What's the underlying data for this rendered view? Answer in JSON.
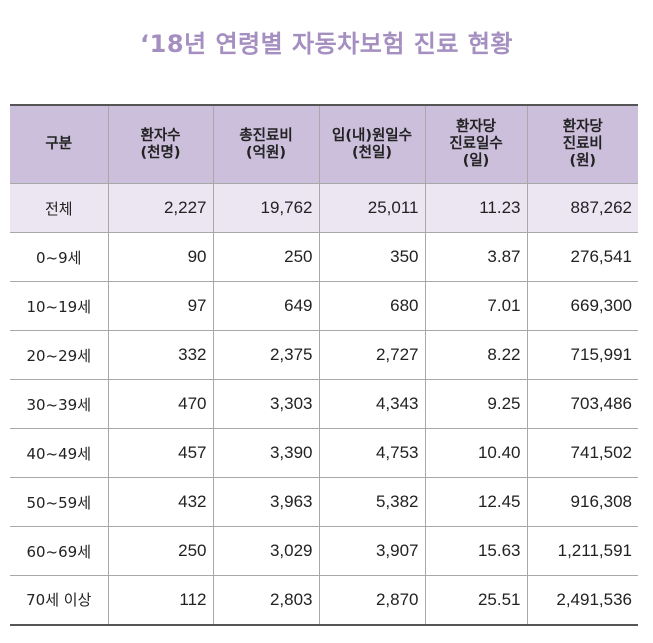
{
  "title": "‘18년 연령별 자동차보험 진료 현황",
  "table": {
    "headers": [
      "구분",
      "환자수\n(천명)",
      "총진료비\n(억원)",
      "입(내)원일수\n(천일)",
      "환자당\n진료일수\n(일)",
      "환자당\n진료비\n(원)"
    ],
    "rows": [
      {
        "label": "전체",
        "patients": "2,227",
        "cost": "19,762",
        "days": "25,011",
        "days_per": "11.23",
        "cost_per": "887,262"
      },
      {
        "label": "0~9세",
        "patients": "90",
        "cost": "250",
        "days": "350",
        "days_per": "3.87",
        "cost_per": "276,541"
      },
      {
        "label": "10~19세",
        "patients": "97",
        "cost": "649",
        "days": "680",
        "days_per": "7.01",
        "cost_per": "669,300"
      },
      {
        "label": "20~29세",
        "patients": "332",
        "cost": "2,375",
        "days": "2,727",
        "days_per": "8.22",
        "cost_per": "715,991"
      },
      {
        "label": "30~39세",
        "patients": "470",
        "cost": "3,303",
        "days": "4,343",
        "days_per": "9.25",
        "cost_per": "703,486"
      },
      {
        "label": "40~49세",
        "patients": "457",
        "cost": "3,390",
        "days": "4,753",
        "days_per": "10.40",
        "cost_per": "741,502"
      },
      {
        "label": "50~59세",
        "patients": "432",
        "cost": "3,963",
        "days": "5,382",
        "days_per": "12.45",
        "cost_per": "916,308"
      },
      {
        "label": "60~69세",
        "patients": "250",
        "cost": "3,029",
        "days": "3,907",
        "days_per": "15.63",
        "cost_per": "1,211,591"
      },
      {
        "label": "70세 이상",
        "patients": "112",
        "cost": "2,803",
        "days": "2,870",
        "days_per": "25.51",
        "cost_per": "2,491,536"
      }
    ]
  },
  "colors": {
    "title": "#a58fc0",
    "header_bg": "#cbbfdc",
    "total_row_bg": "#ece6f3"
  }
}
